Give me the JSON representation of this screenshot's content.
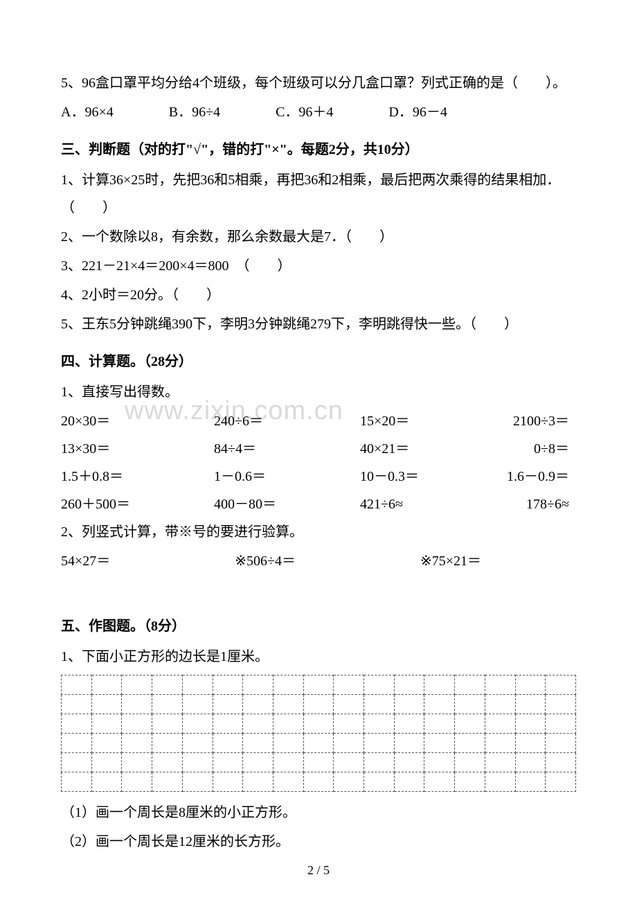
{
  "watermark": "www.zixin.com.cn",
  "q5": {
    "text": "5、96盒口罩平均分给4个班级，每个班级可以分几盒口罩？列式正确的是（　　）。",
    "choices": {
      "a": "A．96×4",
      "b": "B．96÷4",
      "c": "C．96＋4",
      "d": "D．96－4"
    }
  },
  "section3": {
    "header": "三、判断题（对的打\"√\"，错的打\"×\"。每题2分，共10分）",
    "q1": "1、计算36×25时，先把36和5相乘，再把36和2相乘，最后把两次乘得的结果相加．（　　）",
    "q2": "2、一个数除以8，有余数，那么余数最大是7．（　　）",
    "q3": "3、221－21×4＝200×4＝800　（　　）",
    "q4": "4、2小时＝20分。（　　）",
    "q5": "5、王东5分钟跳绳390下，李明3分钟跳绳279下，李明跳得快一些。（　　）"
  },
  "section4": {
    "header": "四、计算题。（28分）",
    "sub1": "1、直接写出得数。",
    "row1": {
      "a": "20×30＝",
      "b": "240÷6＝",
      "c": "15×20＝",
      "d": "2100÷3＝"
    },
    "row2": {
      "a": "13×30＝",
      "b": "84÷4＝",
      "c": "40×21＝",
      "d": "0÷8＝"
    },
    "row3": {
      "a": "1.5＋0.8＝",
      "b": "1－0.6＝",
      "c": "10－0.3＝",
      "d": "1.6－0.9＝"
    },
    "row4": {
      "a": "260＋500＝",
      "b": "400－80＝",
      "c": "421÷6≈",
      "d": "178÷6≈"
    },
    "sub2": "2、列竖式计算，带※号的要进行验算。",
    "row5": {
      "a": "54×27＝",
      "b": "※506÷4＝",
      "c": "※75×21＝"
    }
  },
  "section5": {
    "header": "五、作图题。（8分）",
    "q1": "1、下面小正方形的边长是1厘米。",
    "sub1": "（1）画一个周长是8厘米的小正方形。",
    "sub2": "（2）画一个周长是12厘米的长方形。"
  },
  "grid": {
    "rows": 6,
    "cols": 17
  },
  "pageNumber": "2 / 5"
}
